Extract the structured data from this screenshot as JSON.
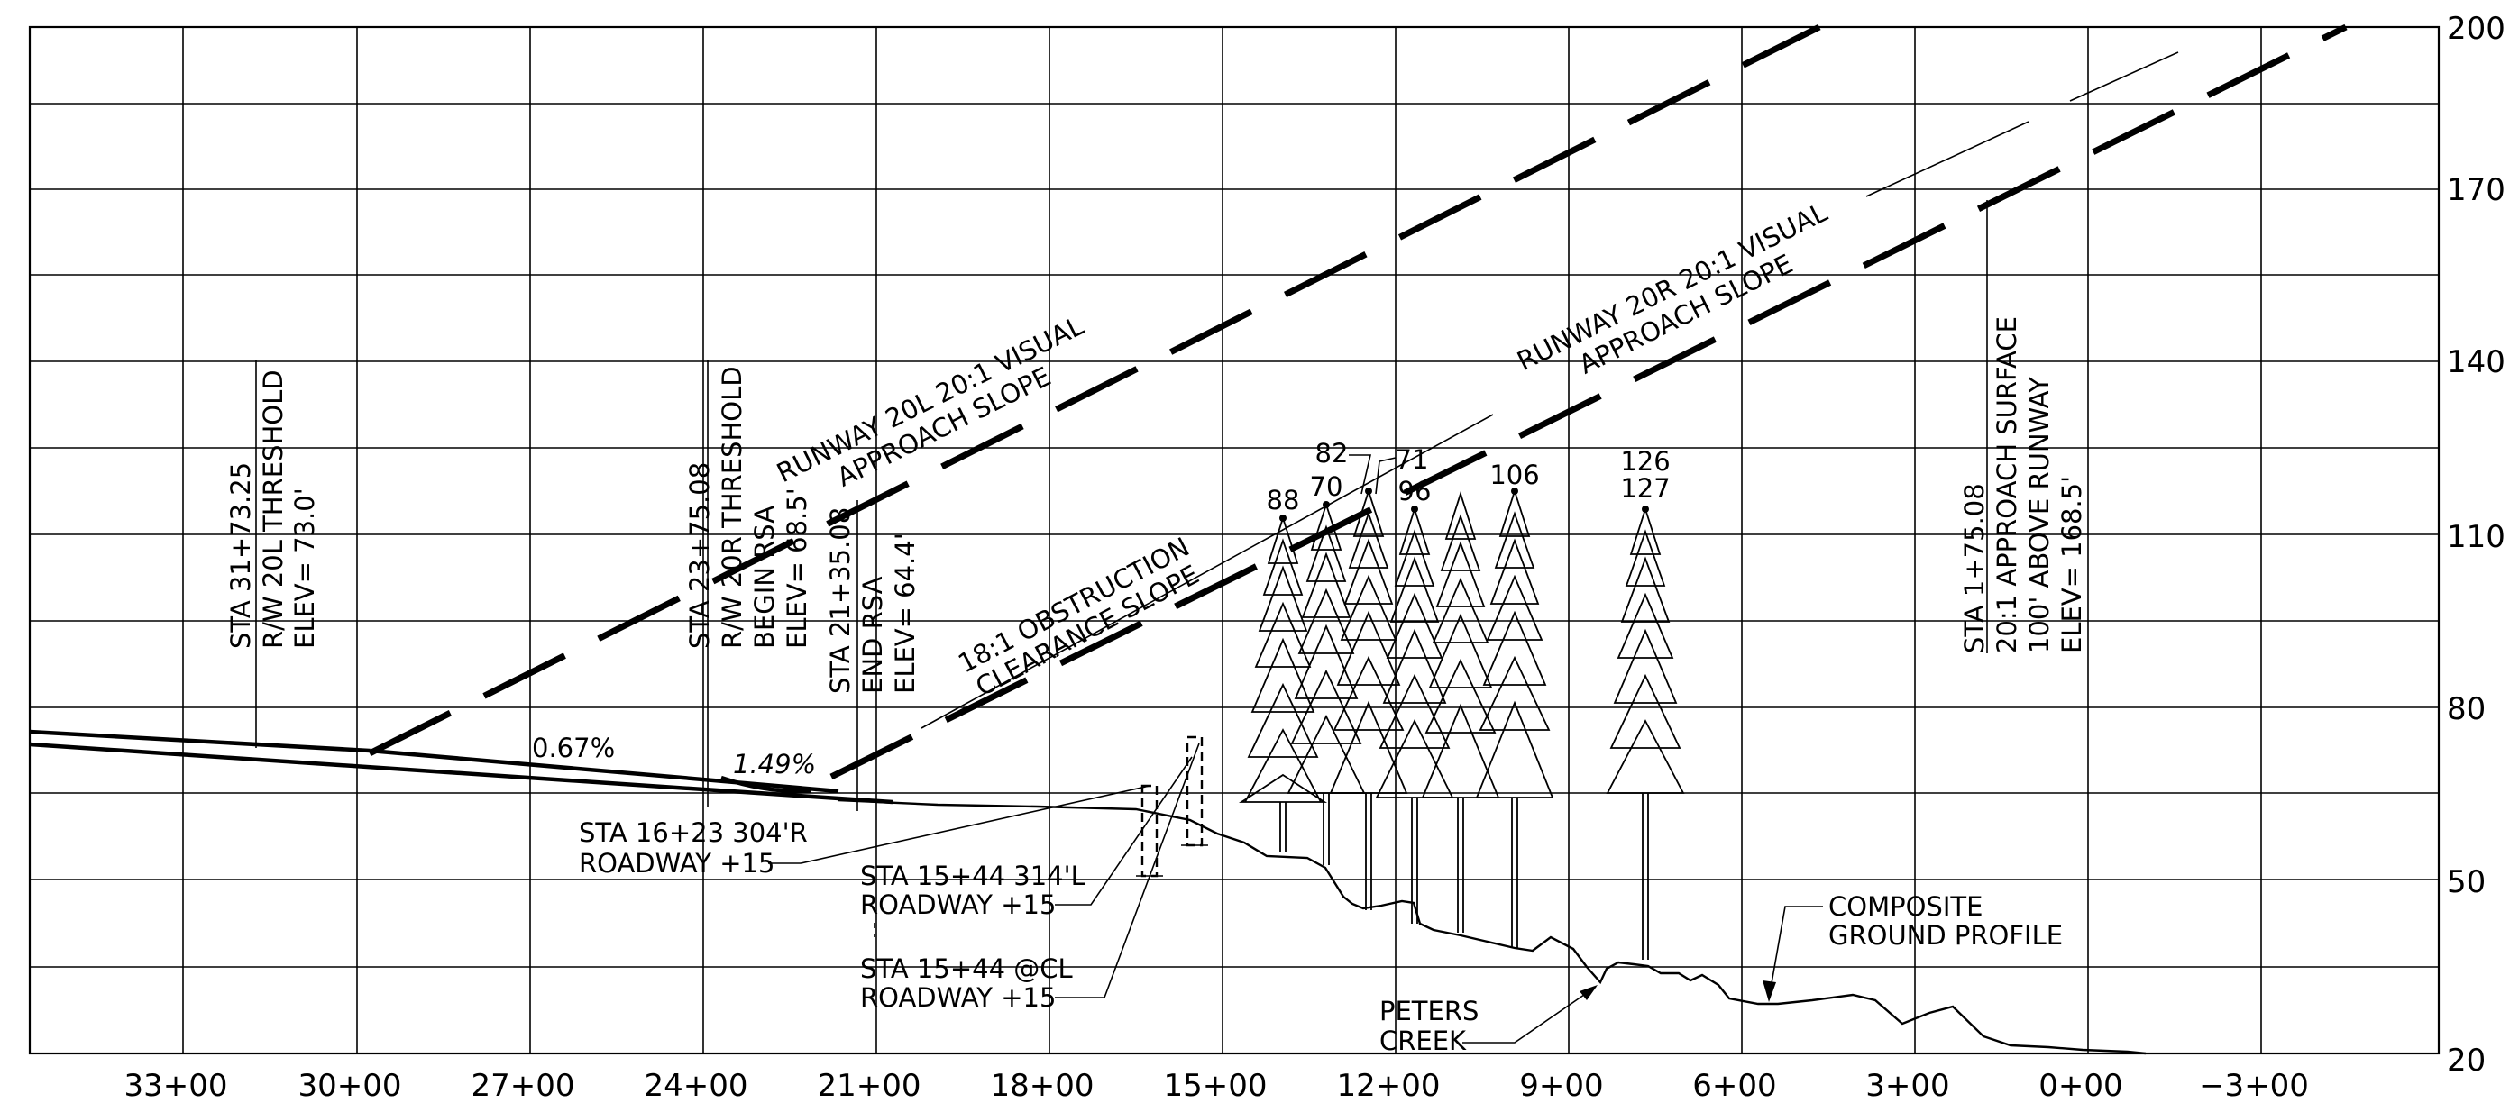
{
  "x_axis": {
    "tick_labels": [
      "33+00",
      "30+00",
      "27+00",
      "24+00",
      "21+00",
      "18+00",
      "15+00",
      "12+00",
      "9+00",
      "6+00",
      "3+00",
      "0+00",
      "−3+00"
    ]
  },
  "y_axis": {
    "tick_labels": [
      "200",
      "170",
      "140",
      "110",
      "80",
      "50",
      "20"
    ]
  },
  "surfaces": {
    "rw20l": [
      "RUNWAY 20L 20:1 VISUAL",
      "APPROACH SLOPE"
    ],
    "rw20r": [
      "RUNWAY 20R 20:1 VISUAL",
      "APPROACH SLOPE"
    ],
    "obstruction": [
      "18:1 OBSTRUCTION",
      "CLEARANCE SLOPE"
    ]
  },
  "grades": {
    "left": "0.67%",
    "right": "1.49%"
  },
  "stations": {
    "rw20l_threshold": [
      "STA 31+73.25",
      "R/W 20L THRESHOLD",
      "ELEV= 73.0'"
    ],
    "rw20r_threshold": [
      "STA 23+75.08",
      "R/W 20R THRESHOLD",
      "BEGIN RSA",
      "ELEV= 68.5'"
    ],
    "end_rsa": [
      "STA 21+35.08",
      "END RSA",
      "ELEV= 64.4'"
    ],
    "approach_surface": [
      "STA 1+75.08",
      "20:1 APPROACH SURFACE",
      "100' ABOVE RUNWAY",
      "ELEV= 168.5'"
    ]
  },
  "roadways": {
    "sta_1623": [
      "STA 16+23 304'R",
      "ROADWAY +15"
    ],
    "sta_1544_l": [
      "STA 15+44 314'L",
      "ROADWAY +15"
    ],
    "sta_1544_cl": [
      "STA 15+44 @CL",
      "ROADWAY +15"
    ]
  },
  "trees": {
    "labels": [
      "88",
      "70",
      "82",
      "71",
      "96",
      "106",
      "126",
      "127"
    ]
  },
  "features": {
    "creek": [
      "PETERS",
      "CREEK"
    ],
    "ground_profile": [
      "COMPOSITE",
      "GROUND PROFILE"
    ]
  }
}
